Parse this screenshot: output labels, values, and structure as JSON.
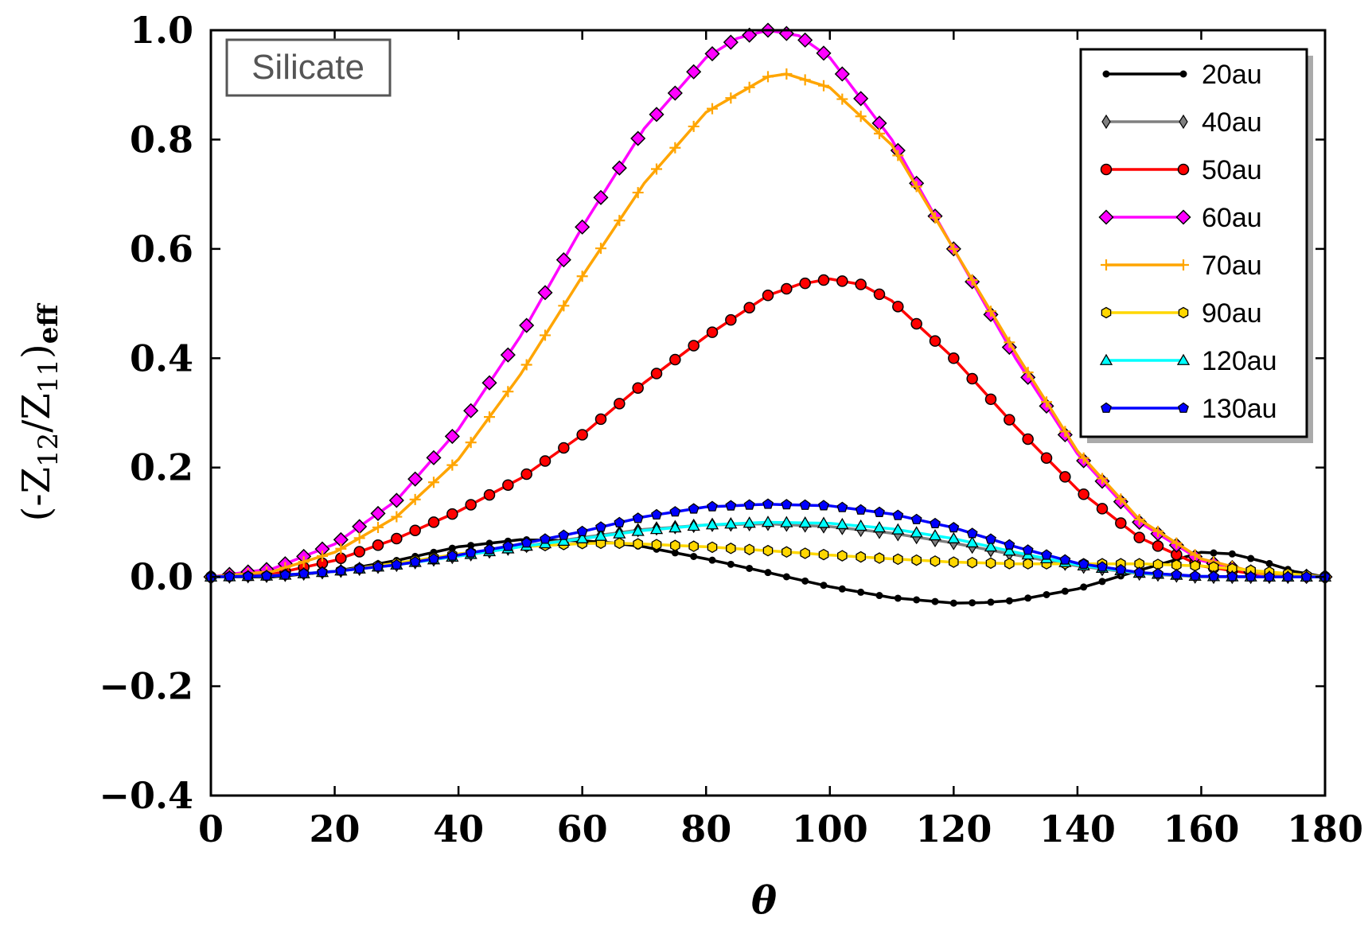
{
  "chart_data": {
    "type": "line",
    "title": "",
    "xlabel": "θ",
    "ylabel_parts": {
      "open": "(-Z",
      "sub1": "12",
      "mid": "/Z",
      "sub2": "11",
      "close": ")",
      "sub3": "eff"
    },
    "xlim": [
      0,
      180
    ],
    "ylim": [
      -0.4,
      1.0
    ],
    "x_ticks": [
      0,
      20,
      40,
      60,
      80,
      100,
      120,
      140,
      160,
      180
    ],
    "x_tick_labels": [
      "0",
      "20",
      "40",
      "60",
      "80",
      "100",
      "120",
      "140",
      "160",
      "180"
    ],
    "y_ticks": [
      -0.4,
      -0.2,
      0.0,
      0.2,
      0.4,
      0.6,
      0.8,
      1.0
    ],
    "y_tick_labels": [
      "−0.4",
      "−0.2",
      "0.0",
      "0.2",
      "0.4",
      "0.6",
      "0.8",
      "1.0"
    ],
    "annotation": "Silicate",
    "legend_position": "top-right",
    "grid": false,
    "marker_step_deg": 3,
    "series": [
      {
        "name": "20au",
        "color": "#000000",
        "marker": "point",
        "x": [
          0,
          10,
          20,
          30,
          40,
          50,
          60,
          65,
          70,
          80,
          90,
          100,
          110,
          120,
          125,
          130,
          140,
          150,
          160,
          165,
          170,
          175,
          180
        ],
        "y": [
          0,
          0,
          0.01,
          0.03,
          0.055,
          0.068,
          0.066,
          0.062,
          0.055,
          0.033,
          0.008,
          -0.018,
          -0.038,
          -0.048,
          -0.047,
          -0.043,
          -0.022,
          0.012,
          0.045,
          0.042,
          0.028,
          0.01,
          0
        ]
      },
      {
        "name": "40au",
        "color": "#808080",
        "marker": "thin-diamond",
        "x": [
          0,
          10,
          20,
          30,
          40,
          50,
          60,
          70,
          80,
          90,
          100,
          110,
          120,
          130,
          140,
          150,
          160,
          170,
          180
        ],
        "y": [
          0,
          0.002,
          0.01,
          0.022,
          0.038,
          0.055,
          0.072,
          0.087,
          0.095,
          0.097,
          0.092,
          0.08,
          0.062,
          0.04,
          0.02,
          0.006,
          0,
          0,
          0
        ]
      },
      {
        "name": "50au",
        "color": "#ff0000",
        "marker": "circle",
        "x": [
          0,
          10,
          20,
          30,
          40,
          50,
          60,
          70,
          80,
          90,
          95,
          100,
          105,
          110,
          120,
          130,
          140,
          150,
          160,
          170,
          180
        ],
        "y": [
          0,
          0.005,
          0.03,
          0.07,
          0.12,
          0.18,
          0.26,
          0.355,
          0.44,
          0.515,
          0.535,
          0.545,
          0.535,
          0.505,
          0.4,
          0.275,
          0.16,
          0.072,
          0.02,
          0.003,
          0
        ]
      },
      {
        "name": "60au",
        "color": "#ff00ff",
        "marker": "diamond",
        "x": [
          0,
          10,
          20,
          30,
          40,
          50,
          60,
          70,
          80,
          85,
          90,
          95,
          100,
          110,
          120,
          130,
          140,
          150,
          160,
          170,
          180
        ],
        "y": [
          0,
          0.015,
          0.06,
          0.14,
          0.27,
          0.44,
          0.64,
          0.82,
          0.95,
          0.985,
          1.0,
          0.99,
          0.95,
          0.8,
          0.6,
          0.4,
          0.225,
          0.1,
          0.03,
          0.004,
          0
        ]
      },
      {
        "name": "70au",
        "color": "#ffa500",
        "marker": "plus",
        "x": [
          0,
          10,
          20,
          30,
          40,
          50,
          60,
          70,
          80,
          90,
          93,
          100,
          110,
          120,
          130,
          140,
          150,
          160,
          170,
          180
        ],
        "y": [
          0,
          0.01,
          0.045,
          0.11,
          0.215,
          0.37,
          0.55,
          0.72,
          0.85,
          0.915,
          0.92,
          0.895,
          0.79,
          0.6,
          0.41,
          0.23,
          0.105,
          0.033,
          0.005,
          0
        ]
      },
      {
        "name": "90au",
        "color": "#ffd700",
        "marker": "hexagon",
        "x": [
          0,
          10,
          20,
          30,
          40,
          50,
          60,
          65,
          70,
          80,
          90,
          100,
          110,
          120,
          130,
          140,
          150,
          160,
          170,
          180
        ],
        "y": [
          0,
          0.002,
          0.01,
          0.025,
          0.042,
          0.055,
          0.061,
          0.062,
          0.06,
          0.055,
          0.048,
          0.04,
          0.033,
          0.027,
          0.024,
          0.024,
          0.024,
          0.02,
          0.01,
          0
        ]
      },
      {
        "name": "120au",
        "color": "#00ffff",
        "marker": "triangle",
        "x": [
          0,
          10,
          20,
          30,
          40,
          50,
          60,
          70,
          80,
          90,
          100,
          110,
          120,
          130,
          140,
          150,
          160,
          170,
          180
        ],
        "y": [
          0,
          0.002,
          0.01,
          0.022,
          0.038,
          0.055,
          0.07,
          0.085,
          0.095,
          0.1,
          0.098,
          0.088,
          0.07,
          0.045,
          0.022,
          0.007,
          0.001,
          0,
          0
        ]
      },
      {
        "name": "130au",
        "color": "#0000ff",
        "marker": "pentagon",
        "x": [
          0,
          10,
          20,
          30,
          40,
          50,
          60,
          70,
          80,
          90,
          100,
          110,
          120,
          130,
          140,
          150,
          160,
          170,
          180
        ],
        "y": [
          0,
          0.002,
          0.01,
          0.022,
          0.04,
          0.06,
          0.083,
          0.11,
          0.128,
          0.133,
          0.13,
          0.115,
          0.09,
          0.055,
          0.025,
          0.008,
          0.001,
          0,
          0
        ]
      }
    ]
  }
}
